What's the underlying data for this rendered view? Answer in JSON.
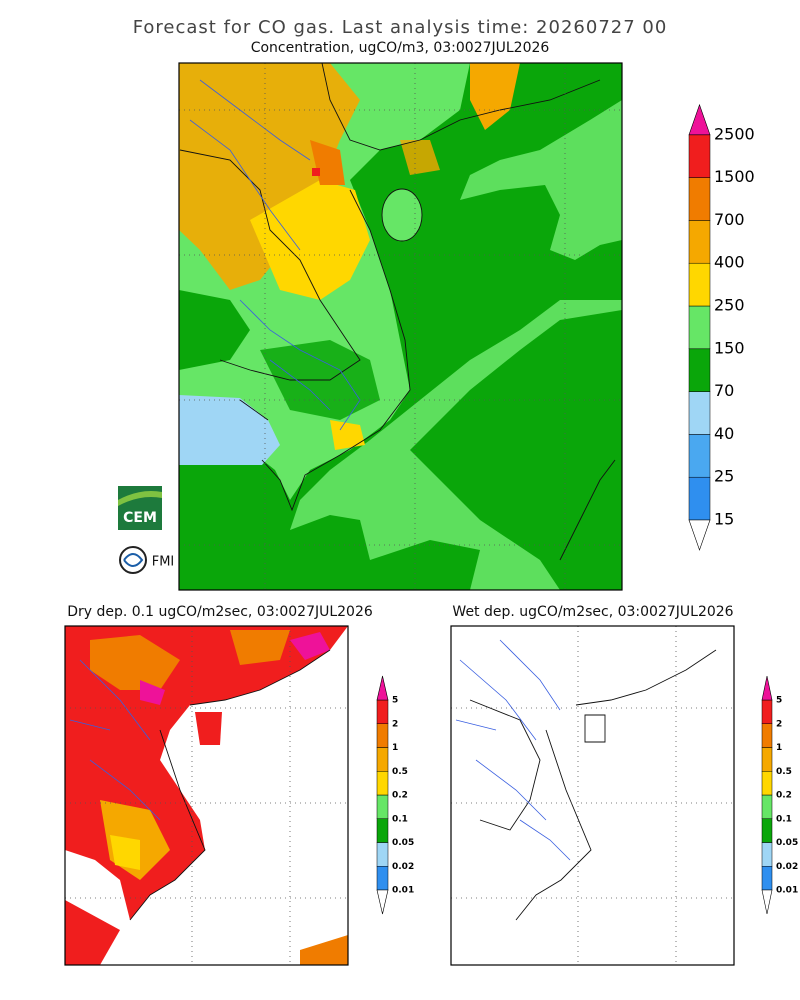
{
  "header": {
    "title": "Forecast for CO gas. Last analysis time: 20260727 00"
  },
  "main_map": {
    "subtitle": "Concentration, ugCO/m3, 03:0027JUL2026",
    "legend": {
      "levels": [
        15,
        25,
        40,
        70,
        150,
        250,
        400,
        700,
        1500,
        2500
      ],
      "colors": [
        "#2f8fef",
        "#4aa8f0",
        "#9fd6f5",
        "#0aa60a",
        "#66e666",
        "#ffd700",
        "#f5a800",
        "#f07c00",
        "#f01e1e"
      ],
      "over_color": "#ee1299",
      "under_color": "#ffffff"
    }
  },
  "dry_map": {
    "subtitle": "Dry dep. 0.1 ugCO/m2sec, 03:0027JUL2026",
    "legend": {
      "levels": [
        0.01,
        0.02,
        0.05,
        0.1,
        0.2,
        0.5,
        1,
        2,
        5
      ],
      "colors": [
        "#2f8fef",
        "#9fd6f5",
        "#0aa60a",
        "#66e666",
        "#ffd700",
        "#f5a800",
        "#f07c00",
        "#f01e1e"
      ],
      "over_color": "#ee1299",
      "under_color": "#ffffff"
    }
  },
  "wet_map": {
    "subtitle": "Wet dep. ugCO/m2sec, 03:0027JUL2026",
    "legend": {
      "levels": [
        0.01,
        0.02,
        0.05,
        0.1,
        0.2,
        0.5,
        1,
        2,
        5
      ],
      "colors": [
        "#2f8fef",
        "#9fd6f5",
        "#0aa60a",
        "#66e666",
        "#ffd700",
        "#f5a800",
        "#f07c00",
        "#f01e1e"
      ],
      "over_color": "#ee1299",
      "under_color": "#ffffff"
    }
  },
  "logos": {
    "cem": "CEM",
    "fmi": "FMI"
  }
}
